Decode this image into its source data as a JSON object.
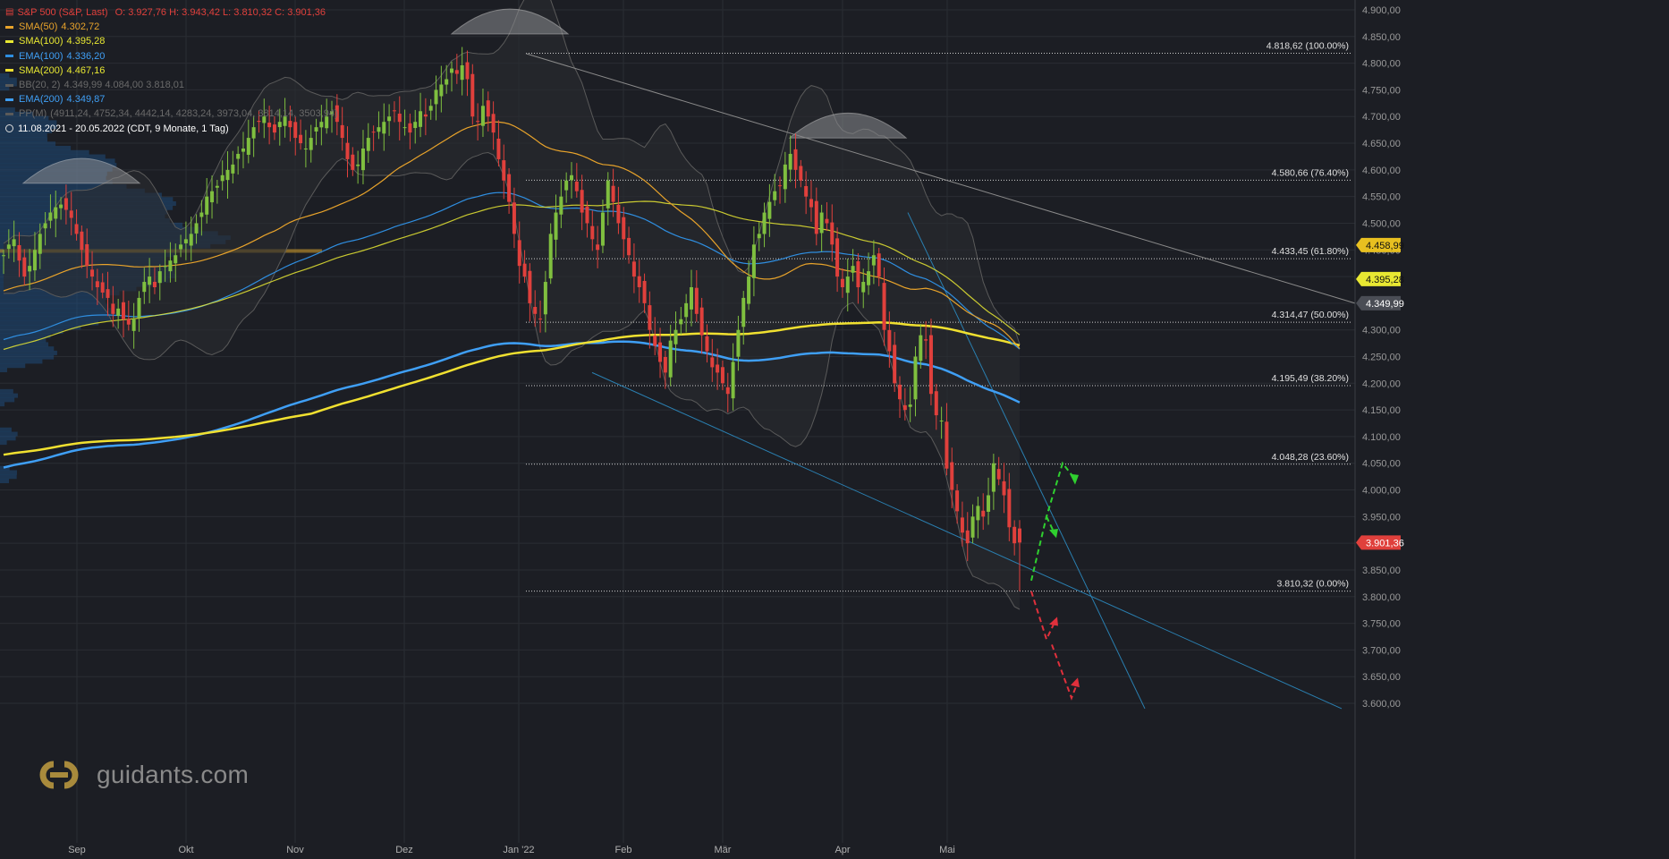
{
  "colors": {
    "background": "#1c1e24",
    "grid": "#2a2d33",
    "up": "#7fbf3f",
    "down": "#e0403c",
    "sma50": "#e8a32b",
    "sma100": "#e8e832",
    "ema100": "#2f8ee0",
    "sma200": "#f0e030",
    "ema200": "#3f9ff5",
    "bb": "#5a5a5a",
    "trend": "#8a8a8a",
    "channel": "#2a7fb0"
  },
  "legend": {
    "title": {
      "text": "S&P 500 (S&P, Last)",
      "values": "O: 3.927,76   H: 3.943,42   L: 3.810,32   C: 3.901,36"
    },
    "items": [
      {
        "name": "SMA(50)",
        "value": "4.302,72",
        "color": "#e8a32b",
        "muted": false
      },
      {
        "name": "SMA(100)",
        "value": "4.395,28",
        "color": "#e8e832",
        "muted": false
      },
      {
        "name": "EMA(100)",
        "value": "4.336,20",
        "color": "#2f8ee0",
        "muted": false
      },
      {
        "name": "SMA(200)",
        "value": "4.467,16",
        "color": "#f0e030",
        "muted": false
      },
      {
        "name": "BB(20, 2)",
        "value": "4.349,99   4.084,00   3.818,01",
        "color": "#5a5a5a",
        "muted": true
      },
      {
        "name": "EMA(200)",
        "value": "4.349,87",
        "color": "#3f9ff5",
        "muted": false
      },
      {
        "name": "PP(M)",
        "value": "(4911,24, 4752,34, 4442,14, 4283,24, 3973,04, 3814,14, 3503,94)",
        "color": "#5a5a5a",
        "muted": true
      }
    ],
    "range": "11.08.2021 - 20.05.2022    (CDT, 9 Monate, 1 Tag)"
  },
  "logo_text": "guidants.com",
  "chart_data": {
    "type": "candlestick",
    "title": "S&P 500 (S&P, Last)",
    "x_labels": [
      "Sep",
      "Okt",
      "Nov",
      "Dez",
      "Jan '22",
      "Feb",
      "Mär",
      "Apr",
      "Mai"
    ],
    "y_ticks": [
      3600,
      3650,
      3700,
      3750,
      3800,
      3850,
      3900,
      3950,
      4000,
      4050,
      4100,
      4150,
      4200,
      4250,
      4300,
      4350,
      4400,
      4450,
      4500,
      4550,
      4600,
      4650,
      4700,
      4750,
      4800,
      4850,
      4900
    ],
    "y_tick_labels": [
      "3.600,00",
      "3.650,00",
      "3.700,00",
      "3.750,00",
      "3.800,00",
      "3.850,00",
      "3.900,00",
      "3.950,00",
      "4.000,00",
      "4.050,00",
      "4.100,00",
      "4.150,00",
      "4.200,00",
      "4.250,00",
      "4.300,00",
      "4.350,00",
      "4.400,00",
      "4.450,00",
      "4.500,00",
      "4.550,00",
      "4.600,00",
      "4.650,00",
      "4.700,00",
      "4.750,00",
      "4.800,00",
      "4.850,00",
      "4.900,00"
    ],
    "ylim": [
      3580,
      4920
    ],
    "close_series": [
      4440,
      4460,
      4470,
      4430,
      4400,
      4420,
      4450,
      4480,
      4500,
      4520,
      4530,
      4535,
      4525,
      4510,
      4480,
      4450,
      4420,
      4400,
      4380,
      4370,
      4360,
      4330,
      4340,
      4320,
      4310,
      4320,
      4360,
      4390,
      4400,
      4380,
      4410,
      4420,
      4430,
      4440,
      4460,
      4470,
      4480,
      4500,
      4520,
      4550,
      4560,
      4570,
      4590,
      4600,
      4610,
      4630,
      4640,
      4660,
      4680,
      4690,
      4700,
      4680,
      4670,
      4690,
      4700,
      4680,
      4660,
      4650,
      4640,
      4660,
      4680,
      4690,
      4700,
      4710,
      4690,
      4660,
      4620,
      4600,
      4610,
      4640,
      4660,
      4670,
      4680,
      4690,
      4700,
      4710,
      4690,
      4680,
      4670,
      4690,
      4710,
      4700,
      4720,
      4750,
      4760,
      4770,
      4790,
      4780,
      4796,
      4770,
      4700,
      4690,
      4720,
      4700,
      4670,
      4620,
      4580,
      4540,
      4480,
      4420,
      4400,
      4350,
      4330,
      4320,
      4390,
      4480,
      4520,
      4550,
      4580,
      4590,
      4560,
      4520,
      4500,
      4470,
      4450,
      4520,
      4580,
      4540,
      4500,
      4470,
      4440,
      4400,
      4380,
      4350,
      4300,
      4270,
      4240,
      4220,
      4280,
      4300,
      4320,
      4350,
      4380,
      4330,
      4290,
      4260,
      4230,
      4220,
      4200,
      4180,
      4240,
      4300,
      4360,
      4400,
      4460,
      4480,
      4520,
      4540,
      4560,
      4570,
      4610,
      4630,
      4600,
      4580,
      4550,
      4530,
      4480,
      4520,
      4500,
      4460,
      4400,
      4380,
      4400,
      4420,
      4380,
      4390,
      4410,
      4440,
      4400,
      4300,
      4260,
      4200,
      4170,
      4150,
      4160,
      4250,
      4290,
      4280,
      4180,
      4140,
      4130,
      4040,
      4000,
      3960,
      3920,
      3900,
      3950,
      3970,
      3950,
      3990,
      4050,
      4020,
      3990,
      3930,
      3900,
      3901.36
    ],
    "candles_note": "Daily OHLC candles from 11.08.2021 to 20.05.2022",
    "last": {
      "open": 3927.76,
      "high": 3943.42,
      "low": 3810.32,
      "close": 3901.36
    },
    "series": [
      {
        "name": "SMA(50)",
        "last": 4302.72
      },
      {
        "name": "SMA(100)",
        "last": 4395.28
      },
      {
        "name": "EMA(100)",
        "last": 4336.2
      },
      {
        "name": "SMA(200)",
        "last": 4467.16
      },
      {
        "name": "BB(20, 2)",
        "last": [
          4349.99,
          4084.0,
          3818.01
        ]
      },
      {
        "name": "EMA(200)",
        "last": 4349.87
      }
    ],
    "fibonacci": [
      {
        "value": 4818.62,
        "label": "4.818,62 (100.00%)"
      },
      {
        "value": 4580.66,
        "label": "4.580,66 (76.40%)"
      },
      {
        "value": 4433.45,
        "label": "4.433,45 (61.80%)"
      },
      {
        "value": 4314.47,
        "label": "4.314,47 (50.00%)"
      },
      {
        "value": 4195.49,
        "label": "4.195,49 (38.20%)"
      },
      {
        "value": 4048.28,
        "label": "4.048,28 (23.60%)"
      },
      {
        "value": 3810.32,
        "label": "3.810,32 (0.00%)"
      }
    ],
    "price_tags": [
      {
        "value": 4458.99,
        "label": "4.458,99",
        "color": "#e8c020"
      },
      {
        "value": 4395.28,
        "label": "4.395,28",
        "color": "#e8e832"
      },
      {
        "value": 4349.99,
        "label": "4.349,99",
        "color": "#4a4d55"
      },
      {
        "value": 3901.36,
        "label": "3.901,36",
        "color": "#e0403c"
      }
    ],
    "grid": true
  }
}
